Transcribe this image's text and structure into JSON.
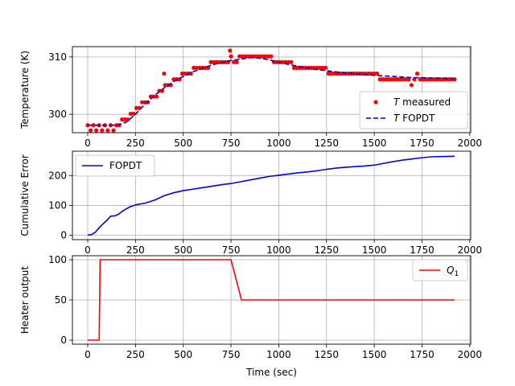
{
  "chart_data": [
    {
      "type": "scatter+line",
      "ylabel": "Temperature (K)",
      "xlim": [
        -80,
        2005
      ],
      "ylim": [
        296.8,
        311.8
      ],
      "xticks": [
        "0",
        "250",
        "500",
        "750",
        "1000",
        "1250",
        "1500",
        "1750",
        "2000"
      ],
      "yticks": [
        "300",
        "310"
      ],
      "grid": true,
      "legend_position": "center-right",
      "series": [
        {
          "name": "$T$ measured",
          "legend_label_italic": "T",
          "legend_label_rest": " measured",
          "style": "markers",
          "color": "#ff0000",
          "points": [
            [
              0,
              298.1
            ],
            [
              15,
              297.2
            ],
            [
              30,
              298.1
            ],
            [
              45,
              297.2
            ],
            [
              60,
              298.1
            ],
            [
              75,
              297.2
            ],
            [
              90,
              298.1
            ],
            [
              105,
              297.2
            ],
            [
              120,
              298.1
            ],
            [
              135,
              297.2
            ],
            [
              150,
              298.1
            ],
            [
              165,
              298.1
            ],
            [
              180,
              299.1
            ],
            [
              195,
              299.1
            ],
            [
              210,
              299.1
            ],
            [
              225,
              300.1
            ],
            [
              240,
              300.1
            ],
            [
              255,
              301.1
            ],
            [
              270,
              301.1
            ],
            [
              285,
              302.1
            ],
            [
              300,
              302.1
            ],
            [
              315,
              302.1
            ],
            [
              330,
              303.1
            ],
            [
              345,
              303.1
            ],
            [
              360,
              303.1
            ],
            [
              375,
              304.1
            ],
            [
              390,
              304.1
            ],
            [
              400,
              307.1
            ],
            [
              405,
              305.1
            ],
            [
              420,
              305.1
            ],
            [
              435,
              305.1
            ],
            [
              450,
              306.1
            ],
            [
              465,
              306.1
            ],
            [
              480,
              306.1
            ],
            [
              495,
              307.1
            ],
            [
              510,
              307.1
            ],
            [
              525,
              307.1
            ],
            [
              540,
              307.1
            ],
            [
              555,
              308.1
            ],
            [
              570,
              308.1
            ],
            [
              585,
              308.1
            ],
            [
              600,
              308.1
            ],
            [
              615,
              308.1
            ],
            [
              630,
              308.1
            ],
            [
              645,
              309.1
            ],
            [
              660,
              309.1
            ],
            [
              675,
              309.1
            ],
            [
              690,
              309.1
            ],
            [
              705,
              309.1
            ],
            [
              720,
              309.1
            ],
            [
              735,
              309.1
            ],
            [
              745,
              311.1
            ],
            [
              750,
              310.1
            ],
            [
              765,
              309.1
            ],
            [
              780,
              309.1
            ],
            [
              795,
              310.1
            ],
            [
              810,
              310.1
            ],
            [
              825,
              310.1
            ],
            [
              840,
              310.1
            ],
            [
              855,
              310.1
            ],
            [
              870,
              310.1
            ],
            [
              885,
              310.1
            ],
            [
              900,
              310.1
            ],
            [
              915,
              310.1
            ],
            [
              930,
              310.1
            ],
            [
              945,
              310.1
            ],
            [
              960,
              310.1
            ],
            [
              975,
              309.1
            ],
            [
              990,
              309.1
            ],
            [
              1005,
              309.1
            ],
            [
              1020,
              309.1
            ],
            [
              1035,
              309.1
            ],
            [
              1050,
              309.1
            ],
            [
              1065,
              309.1
            ],
            [
              1080,
              308.1
            ],
            [
              1095,
              308.1
            ],
            [
              1110,
              308.1
            ],
            [
              1125,
              308.1
            ],
            [
              1140,
              308.1
            ],
            [
              1155,
              308.1
            ],
            [
              1170,
              308.1
            ],
            [
              1185,
              308.1
            ],
            [
              1200,
              308.1
            ],
            [
              1215,
              308.1
            ],
            [
              1230,
              308.1
            ],
            [
              1245,
              308.1
            ],
            [
              1260,
              307.1
            ],
            [
              1275,
              307.1
            ],
            [
              1290,
              307.1
            ],
            [
              1305,
              307.1
            ],
            [
              1320,
              307.1
            ],
            [
              1335,
              307.1
            ],
            [
              1350,
              307.1
            ],
            [
              1365,
              307.1
            ],
            [
              1380,
              307.1
            ],
            [
              1395,
              307.1
            ],
            [
              1410,
              307.1
            ],
            [
              1425,
              307.1
            ],
            [
              1440,
              307.1
            ],
            [
              1455,
              307.1
            ],
            [
              1470,
              307.1
            ],
            [
              1485,
              307.1
            ],
            [
              1500,
              307.1
            ],
            [
              1515,
              307.1
            ],
            [
              1530,
              306.1
            ],
            [
              1545,
              306.1
            ],
            [
              1560,
              306.1
            ],
            [
              1575,
              306.1
            ],
            [
              1590,
              306.1
            ],
            [
              1605,
              306.1
            ],
            [
              1620,
              306.1
            ],
            [
              1635,
              306.1
            ],
            [
              1650,
              306.1
            ],
            [
              1665,
              306.1
            ],
            [
              1680,
              306.1
            ],
            [
              1695,
              305.1
            ],
            [
              1710,
              306.1
            ],
            [
              1725,
              307.1
            ],
            [
              1740,
              306.1
            ],
            [
              1755,
              306.1
            ],
            [
              1770,
              306.1
            ],
            [
              1785,
              306.1
            ],
            [
              1800,
              306.1
            ],
            [
              1815,
              306.1
            ],
            [
              1830,
              306.1
            ],
            [
              1845,
              306.1
            ],
            [
              1860,
              306.1
            ],
            [
              1875,
              306.1
            ],
            [
              1890,
              306.1
            ],
            [
              1905,
              306.1
            ],
            [
              1920,
              306.1
            ]
          ]
        },
        {
          "name": "$T$ FOPDT",
          "legend_label_italic": "T",
          "legend_label_rest": " FOPDT",
          "style": "dashed",
          "color": "#0000cc",
          "points": [
            [
              0,
              298.1
            ],
            [
              60,
              298.1
            ],
            [
              100,
              298.1
            ],
            [
              150,
              298.1
            ],
            [
              200,
              298.6
            ],
            [
              250,
              300.0
            ],
            [
              300,
              301.8
            ],
            [
              350,
              303.3
            ],
            [
              400,
              304.6
            ],
            [
              450,
              305.7
            ],
            [
              500,
              306.6
            ],
            [
              550,
              307.4
            ],
            [
              600,
              308.0
            ],
            [
              650,
              308.6
            ],
            [
              700,
              309.0
            ],
            [
              750,
              309.4
            ],
            [
              800,
              309.6
            ],
            [
              850,
              309.9
            ],
            [
              900,
              309.8
            ],
            [
              950,
              309.5
            ],
            [
              1000,
              309.1
            ],
            [
              1050,
              308.7
            ],
            [
              1100,
              308.4
            ],
            [
              1150,
              308.1
            ],
            [
              1200,
              307.8
            ],
            [
              1250,
              307.6
            ],
            [
              1300,
              307.4
            ],
            [
              1350,
              307.2
            ],
            [
              1400,
              307.1
            ],
            [
              1450,
              306.9
            ],
            [
              1500,
              306.8
            ],
            [
              1550,
              306.7
            ],
            [
              1600,
              306.6
            ],
            [
              1650,
              306.5
            ],
            [
              1700,
              306.4
            ],
            [
              1750,
              306.4
            ],
            [
              1800,
              306.3
            ],
            [
              1850,
              306.3
            ],
            [
              1920,
              306.2
            ]
          ]
        }
      ]
    },
    {
      "type": "line",
      "ylabel": "Cumulative Error",
      "xlim": [
        -80,
        2005
      ],
      "ylim": [
        -15,
        283
      ],
      "xticks": [
        "0",
        "250",
        "500",
        "750",
        "1000",
        "1250",
        "1500",
        "1750",
        "2000"
      ],
      "yticks": [
        "0",
        "100",
        "200"
      ],
      "grid": true,
      "legend_position": "top-left",
      "series": [
        {
          "name": "FOPDT",
          "style": "solid",
          "color": "#0000ff",
          "points": [
            [
              0,
              0
            ],
            [
              20,
              2
            ],
            [
              40,
              10
            ],
            [
              60,
              25
            ],
            [
              80,
              38
            ],
            [
              100,
              50
            ],
            [
              120,
              64
            ],
            [
              140,
              65
            ],
            [
              160,
              70
            ],
            [
              180,
              80
            ],
            [
              200,
              88
            ],
            [
              220,
              95
            ],
            [
              250,
              102
            ],
            [
              300,
              108
            ],
            [
              350,
              118
            ],
            [
              400,
              133
            ],
            [
              450,
              143
            ],
            [
              500,
              150
            ],
            [
              550,
              155
            ],
            [
              600,
              160
            ],
            [
              650,
              165
            ],
            [
              700,
              170
            ],
            [
              750,
              174
            ],
            [
              800,
              180
            ],
            [
              850,
              186
            ],
            [
              900,
              192
            ],
            [
              950,
              198
            ],
            [
              1000,
              202
            ],
            [
              1050,
              206
            ],
            [
              1100,
              210
            ],
            [
              1150,
              213
            ],
            [
              1200,
              217
            ],
            [
              1250,
              222
            ],
            [
              1300,
              226
            ],
            [
              1350,
              229
            ],
            [
              1400,
              231
            ],
            [
              1450,
              233
            ],
            [
              1500,
              236
            ],
            [
              1550,
              242
            ],
            [
              1600,
              248
            ],
            [
              1650,
              253
            ],
            [
              1700,
              257
            ],
            [
              1750,
              261
            ],
            [
              1800,
              264
            ],
            [
              1850,
              265
            ],
            [
              1920,
              266
            ]
          ]
        }
      ]
    },
    {
      "type": "line",
      "ylabel": "Heater output",
      "xlabel": "Time (sec)",
      "xlim": [
        -80,
        2005
      ],
      "ylim": [
        -5,
        105
      ],
      "xticks": [
        "0",
        "250",
        "500",
        "750",
        "1000",
        "1250",
        "1500",
        "1750",
        "2000"
      ],
      "yticks": [
        "0",
        "50",
        "100"
      ],
      "grid": true,
      "legend_position": "top-right",
      "series": [
        {
          "name": "$Q_1$",
          "legend_label_main": "Q",
          "legend_label_sub": "1",
          "style": "solid",
          "color": "#ff0000",
          "points": [
            [
              0,
              0
            ],
            [
              60,
              0
            ],
            [
              65,
              100
            ],
            [
              750,
              100
            ],
            [
              805,
              50
            ],
            [
              1920,
              50
            ]
          ]
        }
      ]
    }
  ]
}
